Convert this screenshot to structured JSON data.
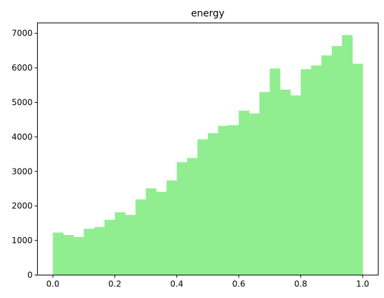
{
  "chart_data": {
    "type": "bar",
    "title": "energy",
    "xlabel": "",
    "ylabel": "",
    "xlim": [
      -0.05,
      1.05
    ],
    "ylim": [
      0,
      7300
    ],
    "grid": false,
    "bar_color": "#90ee90",
    "x_ticks": [
      0.0,
      0.2,
      0.4,
      0.6,
      0.8,
      1.0
    ],
    "x_tick_labels": [
      "0.0",
      "0.2",
      "0.4",
      "0.6",
      "0.8",
      "1.0"
    ],
    "y_ticks": [
      0,
      1000,
      2000,
      3000,
      4000,
      5000,
      6000,
      7000
    ],
    "y_tick_labels": [
      "0",
      "1000",
      "2000",
      "3000",
      "4000",
      "5000",
      "6000",
      "7000"
    ],
    "bin_edges": [
      0.0,
      0.0333,
      0.0667,
      0.1,
      0.1333,
      0.1667,
      0.2,
      0.2333,
      0.2667,
      0.3,
      0.3333,
      0.3667,
      0.4,
      0.4333,
      0.4667,
      0.5,
      0.5333,
      0.5667,
      0.6,
      0.6333,
      0.6667,
      0.7,
      0.7333,
      0.7667,
      0.8,
      0.8333,
      0.8667,
      0.9,
      0.9333,
      0.9667,
      1.0
    ],
    "values": [
      1230,
      1160,
      1100,
      1340,
      1390,
      1600,
      1820,
      1740,
      2190,
      2510,
      2410,
      2740,
      3270,
      3390,
      3930,
      4110,
      4320,
      4340,
      4760,
      4680,
      5300,
      5980,
      5370,
      5200,
      5960,
      6070,
      6360,
      6630,
      6950,
      6120
    ]
  }
}
